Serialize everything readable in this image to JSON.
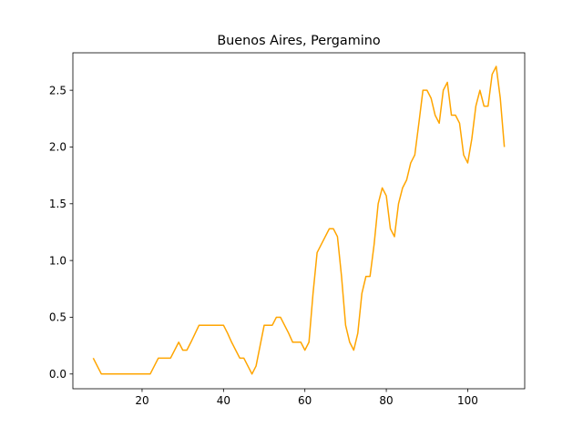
{
  "chart_data": {
    "type": "line",
    "title": "Buenos Aires, Pergamino",
    "xlabel": "",
    "ylabel": "",
    "xlim": [
      3,
      114
    ],
    "ylim": [
      -0.13,
      2.83
    ],
    "x_ticks": [
      20,
      40,
      60,
      80,
      100
    ],
    "y_ticks": [
      0.0,
      0.5,
      1.0,
      1.5,
      2.0,
      2.5
    ],
    "y_tick_labels": [
      "0.0",
      "0.5",
      "1.0",
      "1.5",
      "2.0",
      "2.5"
    ],
    "grid": false,
    "legend": "none",
    "series": [
      {
        "color": "#ffa500",
        "x": [
          8,
          10,
          11,
          12,
          13,
          14,
          15,
          16,
          17,
          18,
          19,
          20,
          21,
          22,
          24,
          25,
          26,
          27,
          29,
          30,
          31,
          32,
          34,
          35,
          36,
          37,
          38,
          39,
          40,
          41,
          42,
          43,
          44,
          45,
          46,
          47,
          48,
          50,
          51,
          52,
          53,
          54,
          55,
          56,
          57,
          58,
          59,
          60,
          61,
          62,
          63,
          64,
          65,
          66,
          67,
          68,
          69,
          70,
          71,
          72,
          73,
          74,
          75,
          76,
          77,
          78,
          79,
          80,
          81,
          82,
          83,
          84,
          85,
          86,
          87,
          88,
          89,
          90,
          91,
          92,
          93,
          94,
          95,
          96,
          97,
          98,
          99,
          100,
          101,
          102,
          103,
          104,
          105,
          106,
          107,
          108,
          109
        ],
        "values": [
          0.14,
          0.0,
          0.0,
          0.0,
          0.0,
          0.0,
          0.0,
          0.0,
          0.0,
          0.0,
          0.0,
          0.0,
          0.0,
          0.0,
          0.14,
          0.14,
          0.14,
          0.14,
          0.28,
          0.21,
          0.21,
          0.28,
          0.43,
          0.43,
          0.43,
          0.43,
          0.43,
          0.43,
          0.43,
          0.36,
          0.28,
          0.21,
          0.14,
          0.14,
          0.07,
          0.0,
          0.07,
          0.43,
          0.43,
          0.43,
          0.5,
          0.5,
          0.43,
          0.36,
          0.28,
          0.28,
          0.28,
          0.21,
          0.28,
          0.71,
          1.07,
          1.14,
          1.21,
          1.28,
          1.28,
          1.21,
          0.86,
          0.43,
          0.28,
          0.21,
          0.36,
          0.71,
          0.86,
          0.86,
          1.14,
          1.5,
          1.64,
          1.57,
          1.28,
          1.21,
          1.5,
          1.64,
          1.71,
          1.86,
          1.93,
          2.21,
          2.5,
          2.5,
          2.43,
          2.28,
          2.21,
          2.5,
          2.57,
          2.28,
          2.28,
          2.21,
          1.93,
          1.86,
          2.07,
          2.36,
          2.5,
          2.36,
          2.36,
          2.64,
          2.71,
          2.43,
          2.0
        ]
      }
    ]
  }
}
